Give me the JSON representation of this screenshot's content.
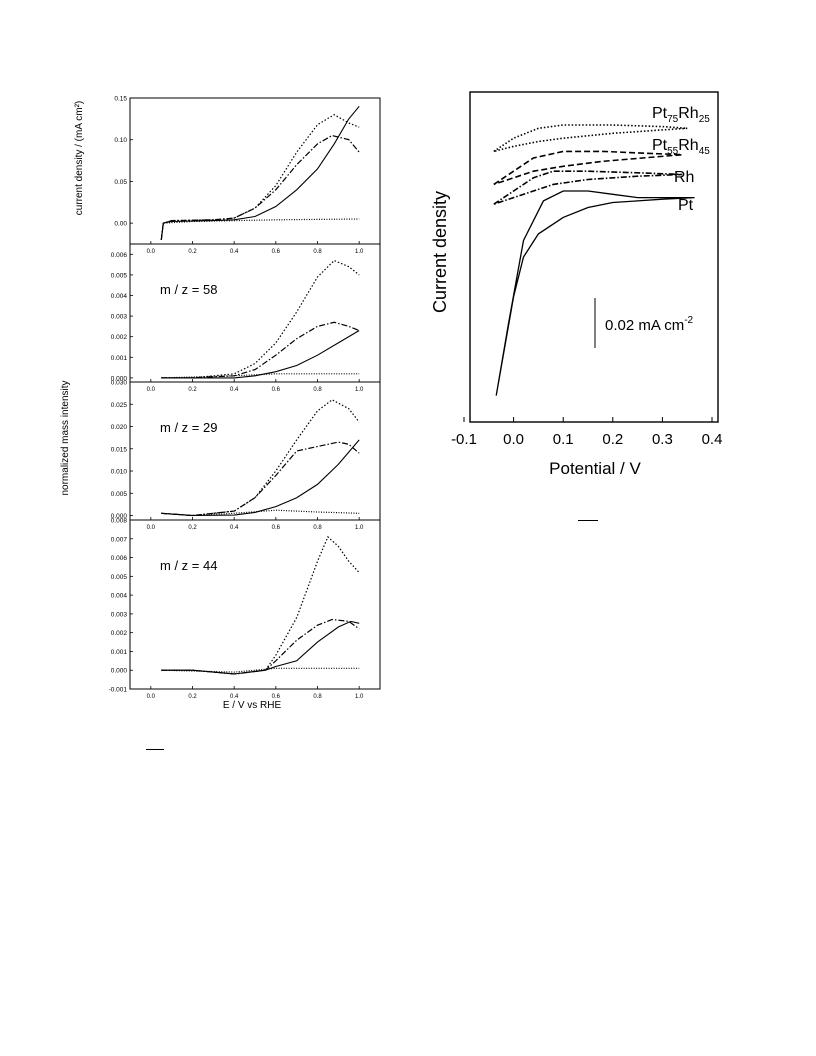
{
  "left_figure": {
    "ylabel_top": "current density / (mA cm²)",
    "ylabel_mid": "normalized mass intensity",
    "xlabel": "E / V vs RHE"
  },
  "right_figure": {
    "scale_bar_label": "0.02 mA cm",
    "scale_bar_exponent": "-2"
  },
  "chart_data": [
    {
      "id": "current",
      "type": "line",
      "title": "",
      "xlabel": "",
      "ylabel": "current density / (mA cm²)",
      "xlim": [
        -0.1,
        1.1
      ],
      "ylim": [
        -0.025,
        0.15
      ],
      "xticks": [
        "0.0",
        "0.2",
        "0.4",
        "0.6",
        "0.8",
        "1.0"
      ],
      "yticks": [
        "0.00",
        "0.05",
        "0.10",
        "0.15"
      ],
      "series": [
        {
          "style": "solid",
          "x": [
            0.05,
            0.06,
            0.1,
            0.3,
            0.4,
            0.5,
            0.6,
            0.7,
            0.8,
            0.88,
            0.95,
            1.0
          ],
          "y": [
            -0.02,
            0.0,
            0.002,
            0.003,
            0.004,
            0.008,
            0.02,
            0.04,
            0.065,
            0.095,
            0.125,
            0.14
          ]
        },
        {
          "style": "dotted",
          "x": [
            0.05,
            0.06,
            0.1,
            0.3,
            0.4,
            0.5,
            0.6,
            0.7,
            0.8,
            0.88,
            0.95,
            1.0
          ],
          "y": [
            -0.02,
            0.0,
            0.003,
            0.004,
            0.006,
            0.018,
            0.045,
            0.085,
            0.118,
            0.13,
            0.12,
            0.115
          ]
        },
        {
          "style": "dashdot",
          "x": [
            0.05,
            0.06,
            0.1,
            0.3,
            0.4,
            0.5,
            0.6,
            0.7,
            0.8,
            0.87,
            0.95,
            1.0
          ],
          "y": [
            -0.02,
            0.0,
            0.003,
            0.004,
            0.006,
            0.018,
            0.04,
            0.07,
            0.095,
            0.105,
            0.1,
            0.085
          ]
        },
        {
          "style": "fine-dotted",
          "x": [
            0.05,
            0.06,
            0.2,
            0.6,
            1.0
          ],
          "y": [
            -0.02,
            0.0,
            0.002,
            0.004,
            0.005
          ]
        }
      ]
    },
    {
      "id": "mz58",
      "type": "line",
      "annotation": "m / z = 58",
      "xlim": [
        -0.1,
        1.1
      ],
      "ylim": [
        -0.0002,
        0.0065
      ],
      "xticks": [
        "0.0",
        "0.2",
        "0.4",
        "0.6",
        "0.8",
        "1.0"
      ],
      "yticks": [
        "0.000",
        "0.001",
        "0.002",
        "0.003",
        "0.004",
        "0.005",
        "0.006"
      ],
      "series": [
        {
          "style": "solid",
          "x": [
            0.05,
            0.2,
            0.4,
            0.5,
            0.6,
            0.7,
            0.8,
            0.9,
            1.0
          ],
          "y": [
            0.0,
            0.0,
            0.0,
            0.0001,
            0.0003,
            0.0006,
            0.0011,
            0.0017,
            0.0023
          ]
        },
        {
          "style": "dotted",
          "x": [
            0.05,
            0.2,
            0.4,
            0.5,
            0.6,
            0.7,
            0.8,
            0.88,
            0.95,
            1.0
          ],
          "y": [
            0.0,
            0.0,
            0.0002,
            0.0007,
            0.0017,
            0.0032,
            0.0049,
            0.0057,
            0.0054,
            0.005
          ]
        },
        {
          "style": "dashdot",
          "x": [
            0.05,
            0.2,
            0.4,
            0.5,
            0.6,
            0.7,
            0.8,
            0.88,
            0.95,
            1.0
          ],
          "y": [
            0.0,
            0.0,
            0.0001,
            0.0004,
            0.0011,
            0.0019,
            0.0025,
            0.0027,
            0.0025,
            0.0023
          ]
        },
        {
          "style": "fine-dotted",
          "x": [
            0.05,
            0.4,
            0.6,
            0.8,
            1.0
          ],
          "y": [
            0.0,
            0.0001,
            0.0002,
            0.0002,
            0.0002
          ]
        }
      ]
    },
    {
      "id": "mz29",
      "type": "line",
      "annotation": "m / z = 29",
      "xlim": [
        -0.1,
        1.1
      ],
      "ylim": [
        -0.001,
        0.03
      ],
      "xticks": [
        "0.0",
        "0.2",
        "0.4",
        "0.6",
        "0.8",
        "1.0"
      ],
      "yticks": [
        "0.000",
        "0.005",
        "0.010",
        "0.015",
        "0.020",
        "0.025",
        "0.030"
      ],
      "series": [
        {
          "style": "solid",
          "x": [
            0.05,
            0.2,
            0.4,
            0.5,
            0.6,
            0.7,
            0.8,
            0.9,
            1.0
          ],
          "y": [
            0.0005,
            0.0,
            0.0001,
            0.0007,
            0.002,
            0.004,
            0.007,
            0.0115,
            0.017
          ]
        },
        {
          "style": "dotted",
          "x": [
            0.05,
            0.2,
            0.4,
            0.5,
            0.6,
            0.7,
            0.8,
            0.87,
            0.95,
            1.0
          ],
          "y": [
            0.0005,
            0.0,
            0.001,
            0.004,
            0.01,
            0.017,
            0.0235,
            0.026,
            0.024,
            0.021
          ]
        },
        {
          "style": "dashdot",
          "x": [
            0.05,
            0.2,
            0.4,
            0.5,
            0.6,
            0.7,
            0.8,
            0.9,
            0.95,
            1.0
          ],
          "y": [
            0.0005,
            0.0,
            0.001,
            0.004,
            0.009,
            0.0145,
            0.0155,
            0.0165,
            0.016,
            0.014
          ]
        },
        {
          "style": "fine-dotted",
          "x": [
            0.05,
            0.2,
            0.4,
            0.6,
            0.8,
            1.0
          ],
          "y": [
            0.0005,
            0.0,
            0.0005,
            0.0012,
            0.0008,
            0.0005
          ]
        }
      ]
    },
    {
      "id": "mz44",
      "type": "line",
      "annotation": "m / z = 44",
      "xlim": [
        -0.1,
        1.1
      ],
      "ylim": [
        -0.001,
        0.008
      ],
      "xlabel": "E / V vs RHE",
      "xticks": [
        "0.0",
        "0.2",
        "0.4",
        "0.6",
        "0.8",
        "1.0"
      ],
      "yticks": [
        "-0.001",
        "0.000",
        "0.001",
        "0.002",
        "0.003",
        "0.004",
        "0.005",
        "0.006",
        "0.007",
        "0.008"
      ],
      "series": [
        {
          "style": "solid",
          "x": [
            0.05,
            0.2,
            0.4,
            0.55,
            0.6,
            0.7,
            0.8,
            0.9,
            0.96,
            1.0
          ],
          "y": [
            0.0,
            0.0,
            -0.0002,
            0.0,
            0.0002,
            0.0005,
            0.0015,
            0.0023,
            0.0026,
            0.0025
          ]
        },
        {
          "style": "dotted",
          "x": [
            0.05,
            0.2,
            0.4,
            0.55,
            0.6,
            0.7,
            0.8,
            0.85,
            0.9,
            0.95,
            1.0
          ],
          "y": [
            0.0,
            0.0,
            -0.0002,
            0.0,
            0.0008,
            0.0028,
            0.0058,
            0.0071,
            0.0066,
            0.0058,
            0.0052
          ]
        },
        {
          "style": "dashdot",
          "x": [
            0.05,
            0.2,
            0.4,
            0.55,
            0.6,
            0.7,
            0.8,
            0.87,
            0.95,
            1.0
          ],
          "y": [
            0.0,
            0.0,
            -0.0002,
            0.0,
            0.0005,
            0.0016,
            0.0024,
            0.0027,
            0.0026,
            0.0022
          ]
        },
        {
          "style": "fine-dotted",
          "x": [
            0.05,
            0.4,
            0.6,
            0.8,
            1.0
          ],
          "y": [
            0.0,
            -0.0001,
            0.0001,
            0.0001,
            0.0001
          ]
        }
      ]
    },
    {
      "id": "cv",
      "type": "line",
      "xlabel": "Potential / V",
      "ylabel": "Current density",
      "xlim": [
        -0.1,
        0.4
      ],
      "ylim": [
        0,
        1
      ],
      "xticks": [
        "-0.1",
        "0.0",
        "0.1",
        "0.2",
        "0.3",
        "0.4"
      ],
      "series": [
        {
          "name": "Pt",
          "style": "solid",
          "x": [
            -0.035,
            -0.01,
            0.02,
            0.06,
            0.1,
            0.15,
            0.2,
            0.25,
            0.3,
            0.365,
            0.3,
            0.25,
            0.2,
            0.15,
            0.1,
            0.05,
            0.02,
            0.0,
            -0.035
          ],
          "y": [
            0.08,
            0.3,
            0.55,
            0.67,
            0.7,
            0.7,
            0.69,
            0.68,
            0.68,
            0.68,
            0.675,
            0.67,
            0.665,
            0.65,
            0.62,
            0.57,
            0.5,
            0.38,
            0.08
          ]
        },
        {
          "name": "Rh",
          "style": "dashdot",
          "x": [
            -0.04,
            0.0,
            0.04,
            0.08,
            0.15,
            0.25,
            0.34,
            0.25,
            0.15,
            0.08,
            0.04,
            0.0,
            -0.04
          ],
          "y": [
            0.66,
            0.7,
            0.74,
            0.76,
            0.76,
            0.755,
            0.75,
            0.745,
            0.735,
            0.72,
            0.7,
            0.68,
            0.66
          ]
        },
        {
          "name": "Pt55Rh45",
          "style": "dashed",
          "x": [
            -0.04,
            0.0,
            0.04,
            0.1,
            0.18,
            0.26,
            0.34,
            0.26,
            0.18,
            0.1,
            0.04,
            0.0,
            -0.04
          ],
          "y": [
            0.72,
            0.76,
            0.8,
            0.82,
            0.82,
            0.815,
            0.81,
            0.8,
            0.79,
            0.775,
            0.76,
            0.74,
            0.72
          ]
        },
        {
          "name": "Pt75Rh25",
          "style": "dotted",
          "x": [
            -0.04,
            0.0,
            0.05,
            0.1,
            0.2,
            0.3,
            0.35,
            0.3,
            0.2,
            0.1,
            0.05,
            0.0,
            -0.04
          ],
          "y": [
            0.82,
            0.86,
            0.89,
            0.9,
            0.9,
            0.895,
            0.89,
            0.885,
            0.875,
            0.86,
            0.85,
            0.835,
            0.82
          ]
        }
      ],
      "curve_labels": [
        {
          "base": "Pt",
          "sub": "75",
          "base2": "Rh",
          "sub2": "25"
        },
        {
          "base": "Pt",
          "sub": "55",
          "base2": "Rh",
          "sub2": "45"
        },
        {
          "base": "Rh"
        },
        {
          "base": "Pt"
        }
      ]
    }
  ]
}
